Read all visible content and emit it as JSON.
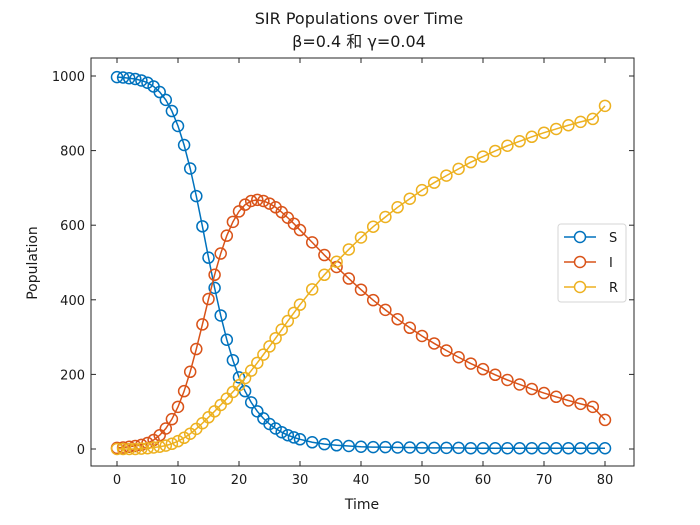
{
  "chart_data": {
    "type": "line",
    "title": "SIR Populations over Time",
    "subtitle": "β=0.4 和 γ=0.04",
    "xlabel": "Time",
    "ylabel": "Population",
    "xlim": [
      -4,
      84
    ],
    "ylim": [
      -45,
      1050
    ],
    "xticks": [
      0,
      10,
      20,
      30,
      40,
      50,
      60,
      70,
      80
    ],
    "yticks": [
      0,
      200,
      400,
      600,
      800,
      1000
    ],
    "xtick_labels": [
      "0",
      "10",
      "20",
      "30",
      "40",
      "50",
      "60",
      "70",
      "80"
    ],
    "ytick_labels": [
      "0",
      "200",
      "400",
      "600",
      "800",
      "1000"
    ],
    "grid": false,
    "legend_position": "center-right",
    "marker": "open-circle",
    "x": [
      0,
      1,
      2,
      3,
      4,
      5,
      6,
      7,
      8,
      9,
      10,
      11,
      12,
      13,
      14,
      15,
      16,
      17,
      18,
      19,
      20,
      21,
      22,
      23,
      24,
      25,
      26,
      27,
      28,
      29,
      30,
      32,
      34,
      36,
      38,
      40,
      42,
      44,
      46,
      48,
      50,
      52,
      54,
      56,
      58,
      60,
      62,
      64,
      66,
      68,
      70,
      72,
      74,
      76,
      78,
      80
    ],
    "series": [
      {
        "name": "S",
        "color": "#0072BD",
        "values": [
          997,
          996,
          994,
          992,
          988,
          982,
          972,
          957,
          936,
          906,
          866,
          815,
          752,
          678,
          597,
          513,
          432,
          358,
          293,
          238,
          192,
          155,
          125,
          101,
          82,
          67,
          55,
          45,
          37,
          31,
          26,
          18,
          13,
          10,
          8,
          6,
          5,
          5,
          4,
          4,
          3,
          3,
          3,
          3,
          2,
          2,
          2,
          2,
          2,
          2,
          2,
          2,
          2,
          2,
          2,
          2
        ]
      },
      {
        "name": "I",
        "color": "#D95319",
        "values": [
          3,
          4,
          6,
          8,
          11,
          16,
          24,
          37,
          55,
          80,
          113,
          155,
          207,
          268,
          334,
          402,
          467,
          524,
          572,
          609,
          637,
          655,
          665,
          668,
          665,
          658,
          648,
          635,
          620,
          604,
          587,
          554,
          520,
          488,
          457,
          427,
          399,
          373,
          348,
          325,
          303,
          283,
          264,
          246,
          229,
          214,
          199,
          185,
          173,
          161,
          150,
          140,
          130,
          121,
          113,
          78
        ]
      },
      {
        "name": "R",
        "color": "#EDB120",
        "values": [
          0,
          0,
          0,
          0,
          1,
          2,
          4,
          6,
          9,
          14,
          21,
          30,
          41,
          54,
          69,
          85,
          101,
          118,
          135,
          153,
          171,
          190,
          210,
          231,
          253,
          275,
          297,
          320,
          343,
          365,
          387,
          428,
          467,
          502,
          535,
          567,
          596,
          622,
          648,
          671,
          694,
          714,
          733,
          751,
          769,
          784,
          799,
          813,
          825,
          837,
          848,
          858,
          868,
          877,
          885,
          920
        ]
      }
    ]
  }
}
